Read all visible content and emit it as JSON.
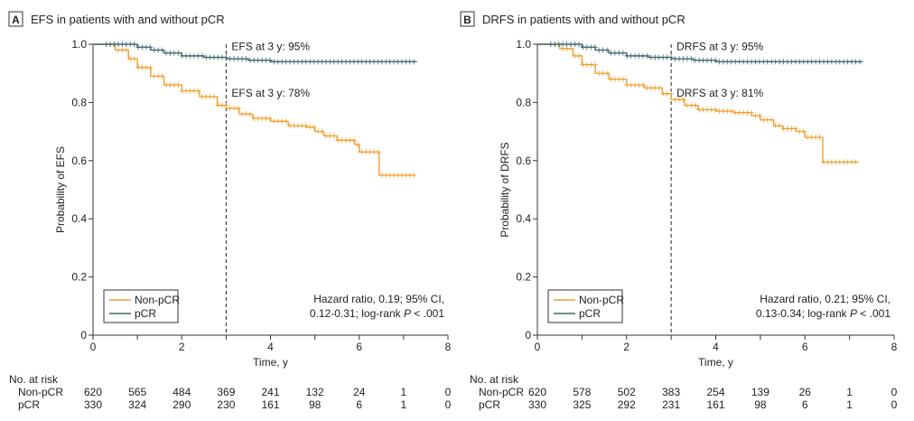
{
  "colors": {
    "nonpcr": "#f0a030",
    "pcr": "#3d6870",
    "axis": "#333333"
  },
  "chart_data": [
    {
      "type": "line",
      "panel": "A",
      "title": "EFS in patients with and without pCR",
      "xlabel": "Time, y",
      "ylabel": "Probability of EFS",
      "xlim": [
        0,
        8
      ],
      "ylim": [
        0,
        1.0
      ],
      "xticks": [
        "0",
        "2",
        "4",
        "6",
        "8"
      ],
      "yticks": [
        "0",
        "0.2",
        "0.4",
        "0.6",
        "0.8",
        "1.0"
      ],
      "vline_x": 3,
      "annotations": {
        "pcr_3y": "EFS at 3 y: 95%",
        "nonpcr_3y": "EFS at 3 y: 78%"
      },
      "hazard_line1": "Hazard ratio, 0.19; 95% CI,",
      "hazard_line2_prefix": "0.12-0.31; log-rank ",
      "hazard_p": "P",
      "hazard_line2_suffix": " < .001",
      "legend": [
        "Non-pCR",
        "pCR"
      ],
      "series": [
        {
          "name": "Non-pCR",
          "color_key": "nonpcr",
          "x": [
            0,
            0.5,
            0.8,
            1.0,
            1.3,
            1.6,
            2.0,
            2.4,
            2.8,
            3.0,
            3.3,
            3.6,
            4.0,
            4.4,
            4.8,
            5.0,
            5.2,
            5.5,
            5.8,
            5.9,
            6.0,
            6.2,
            6.45,
            6.45,
            7.25
          ],
          "y": [
            1.0,
            0.98,
            0.95,
            0.92,
            0.89,
            0.86,
            0.84,
            0.82,
            0.79,
            0.78,
            0.76,
            0.745,
            0.735,
            0.72,
            0.715,
            0.7,
            0.685,
            0.67,
            0.67,
            0.655,
            0.63,
            0.63,
            0.63,
            0.55,
            0.55
          ]
        },
        {
          "name": "pCR",
          "color_key": "pcr",
          "x": [
            0,
            0.8,
            1.0,
            1.3,
            1.6,
            2.0,
            2.5,
            3.0,
            3.5,
            4.0,
            5.0,
            6.0,
            7.3
          ],
          "y": [
            1.0,
            1.0,
            0.99,
            0.98,
            0.97,
            0.96,
            0.955,
            0.95,
            0.945,
            0.94,
            0.94,
            0.94,
            0.94
          ]
        }
      ],
      "risk_table": {
        "header": "No. at risk",
        "times": [
          0,
          1,
          2,
          3,
          4,
          5,
          6,
          7,
          8
        ],
        "rows": [
          {
            "label": "Non-pCR",
            "values": [
              "620",
              "565",
              "484",
              "369",
              "241",
              "132",
              "24",
              "1",
              "0"
            ]
          },
          {
            "label": "pCR",
            "values": [
              "330",
              "324",
              "290",
              "230",
              "161",
              "98",
              "6",
              "1",
              "0"
            ]
          }
        ]
      }
    },
    {
      "type": "line",
      "panel": "B",
      "title": "DRFS in patients with and without pCR",
      "xlabel": "Time, y",
      "ylabel": "Probability of DRFS",
      "xlim": [
        0,
        8
      ],
      "ylim": [
        0,
        1.0
      ],
      "xticks": [
        "0",
        "2",
        "4",
        "6",
        "8"
      ],
      "yticks": [
        "0",
        "0.2",
        "0.4",
        "0.6",
        "0.8",
        "1.0"
      ],
      "vline_x": 3,
      "annotations": {
        "pcr_3y": "DRFS at 3 y: 95%",
        "nonpcr_3y": "DRFS at 3 y: 81%"
      },
      "hazard_line1": "Hazard ratio, 0.21; 95% CI,",
      "hazard_line2_prefix": "0.13-0.34; log-rank ",
      "hazard_p": "P",
      "hazard_line2_suffix": " < .001",
      "legend": [
        "Non-pCR",
        "pCR"
      ],
      "series": [
        {
          "name": "Non-pCR",
          "color_key": "nonpcr",
          "x": [
            0,
            0.5,
            0.8,
            1.0,
            1.3,
            1.6,
            2.0,
            2.4,
            2.8,
            3.0,
            3.3,
            3.6,
            4.0,
            4.4,
            4.8,
            5.0,
            5.3,
            5.5,
            5.8,
            6.0,
            6.2,
            6.4,
            6.4,
            7.2
          ],
          "y": [
            1.0,
            0.985,
            0.96,
            0.93,
            0.9,
            0.88,
            0.86,
            0.85,
            0.83,
            0.81,
            0.79,
            0.775,
            0.77,
            0.765,
            0.755,
            0.74,
            0.72,
            0.71,
            0.7,
            0.68,
            0.68,
            0.68,
            0.595,
            0.595
          ]
        },
        {
          "name": "pCR",
          "color_key": "pcr",
          "x": [
            0,
            0.8,
            1.0,
            1.3,
            1.6,
            2.0,
            2.5,
            3.0,
            3.5,
            4.0,
            5.0,
            6.0,
            7.3
          ],
          "y": [
            1.0,
            1.0,
            0.99,
            0.98,
            0.97,
            0.96,
            0.955,
            0.95,
            0.945,
            0.94,
            0.94,
            0.94,
            0.94
          ]
        }
      ],
      "risk_table": {
        "header": "No. at risk",
        "times": [
          0,
          1,
          2,
          3,
          4,
          5,
          6,
          7,
          8
        ],
        "rows": [
          {
            "label": "Non-pCR",
            "values": [
              "620",
              "578",
              "502",
              "383",
              "254",
              "139",
              "26",
              "1",
              "0"
            ]
          },
          {
            "label": "pCR",
            "values": [
              "330",
              "325",
              "292",
              "231",
              "161",
              "98",
              "6",
              "1",
              "0"
            ]
          }
        ]
      }
    }
  ]
}
